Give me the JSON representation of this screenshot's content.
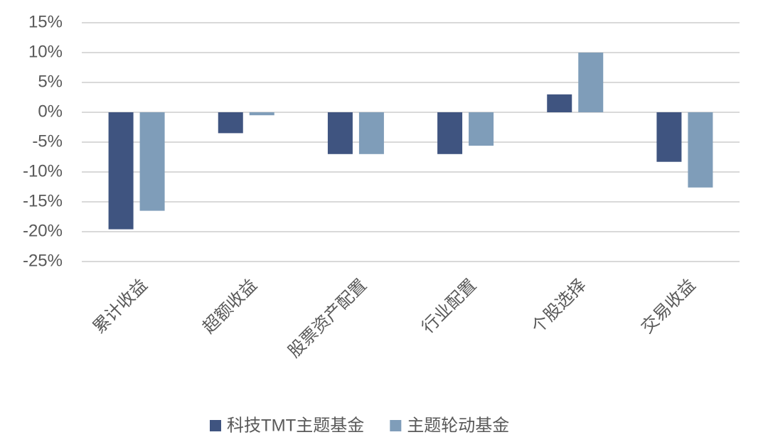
{
  "chart_data": {
    "type": "bar",
    "categories": [
      "累计收益",
      "超额收益",
      "股票资产配置",
      "行业配置",
      "个股选择",
      "交易收益"
    ],
    "series": [
      {
        "name": "科技TMT主题基金",
        "color": "#3f5480",
        "values": [
          -19.6,
          -3.5,
          -7,
          -7,
          3,
          -8.3
        ]
      },
      {
        "name": "主题轮动基金",
        "color": "#7f9db9",
        "values": [
          -16.5,
          -0.5,
          -7,
          -5.6,
          10,
          -12.6
        ]
      }
    ],
    "ylim": [
      -25,
      15
    ],
    "yticks": [
      {
        "value": -25,
        "label": "-25%"
      },
      {
        "value": -20,
        "label": "-20%"
      },
      {
        "value": -15,
        "label": "-15%"
      },
      {
        "value": -10,
        "label": "-10%"
      },
      {
        "value": -5,
        "label": "-5%"
      },
      {
        "value": 0,
        "label": "0%"
      },
      {
        "value": 5,
        "label": "5%"
      },
      {
        "value": 10,
        "label": "10%"
      },
      {
        "value": 15,
        "label": "15%"
      }
    ],
    "grid": true,
    "legend": "bottom"
  }
}
